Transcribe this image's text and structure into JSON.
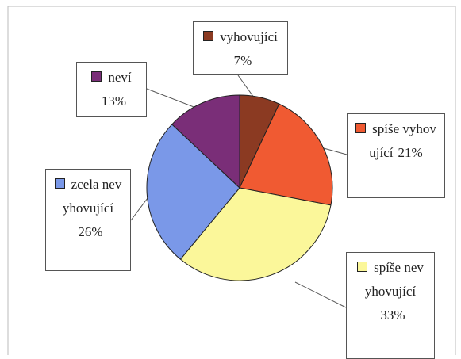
{
  "chart_data": {
    "type": "pie",
    "categories": [
      "vyhovující",
      "spíše vyhovující",
      "spíše nevyhovující",
      "zcela nevyhovující",
      "neví"
    ],
    "values": [
      7,
      21,
      33,
      26,
      13
    ],
    "value_labels": [
      "7%",
      "21%",
      "33%",
      "26%",
      "13%"
    ],
    "colors": [
      "#8b3a22",
      "#f05a32",
      "#fbf79a",
      "#7a98e8",
      "#7a2e78"
    ]
  }
}
